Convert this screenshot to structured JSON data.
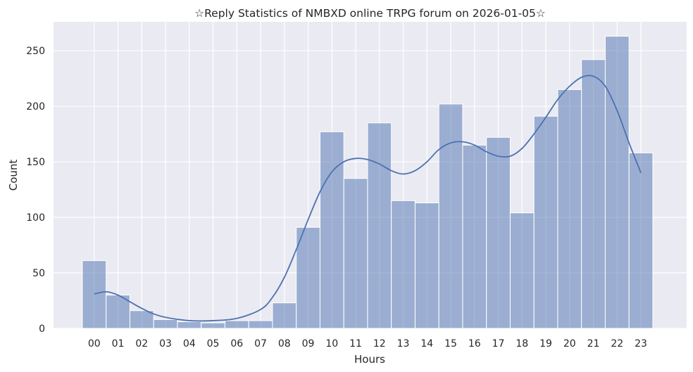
{
  "chart_data": {
    "type": "bar",
    "title": "☆Reply Statistics of NMBXD online TRPG forum on 2026-01-05☆",
    "xlabel": "Hours",
    "ylabel": "Count",
    "categories": [
      "00",
      "01",
      "02",
      "03",
      "04",
      "05",
      "06",
      "07",
      "08",
      "09",
      "10",
      "11",
      "12",
      "13",
      "14",
      "15",
      "16",
      "17",
      "18",
      "19",
      "20",
      "21",
      "22",
      "23"
    ],
    "values": [
      61,
      30,
      16,
      8,
      6,
      5,
      7,
      7,
      23,
      91,
      177,
      135,
      185,
      115,
      113,
      202,
      165,
      172,
      104,
      191,
      215,
      242,
      263,
      158
    ],
    "ylim": [
      0,
      276
    ],
    "yticks": [
      0,
      50,
      100,
      150,
      200,
      250
    ],
    "kde": {
      "x": [
        0,
        0.5,
        1,
        1.5,
        2,
        2.5,
        3,
        4,
        5,
        6,
        7,
        7.5,
        8,
        8.5,
        9,
        9.5,
        10,
        10.5,
        11,
        11.5,
        12,
        12.5,
        13,
        13.5,
        14,
        14.5,
        15,
        15.5,
        16,
        16.5,
        17,
        17.5,
        18,
        18.5,
        19,
        19.5,
        20,
        20.5,
        21,
        21.5,
        22,
        22.5,
        23
      ],
      "y": [
        31,
        33,
        30,
        24,
        18,
        13,
        10,
        7,
        7,
        9,
        17,
        28,
        46,
        71,
        98,
        123,
        141,
        150,
        153,
        152,
        148,
        142,
        139,
        142,
        150,
        161,
        167,
        168,
        165,
        159,
        155,
        155,
        162,
        175,
        190,
        206,
        218,
        226,
        227,
        218,
        196,
        167,
        140
      ]
    },
    "bar_color": "#4c72b0",
    "line_color": "#4c72b0",
    "background": "#eaeaf2",
    "grid": true,
    "legend": "none"
  }
}
